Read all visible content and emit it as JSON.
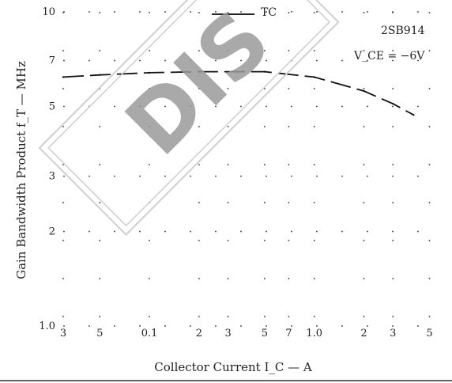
{
  "chart_data": {
    "type": "line",
    "xlabel": "Collector Current I_C — A",
    "ylabel": "Gain Bandwidth Product f_T — MHz",
    "x_scale": "log",
    "y_scale": "log",
    "xlim": [
      0.03,
      6
    ],
    "ylim": [
      1,
      10
    ],
    "x_ticks": [
      {
        "value": 0.03,
        "label": "3"
      },
      {
        "value": 0.05,
        "label": "5"
      },
      {
        "value": 0.1,
        "label": "0.1"
      },
      {
        "value": 0.2,
        "label": "2"
      },
      {
        "value": 0.3,
        "label": "3"
      },
      {
        "value": 0.5,
        "label": "5"
      },
      {
        "value": 0.7,
        "label": "7"
      },
      {
        "value": 1.0,
        "label": "1.0"
      },
      {
        "value": 2.0,
        "label": "2"
      },
      {
        "value": 3.0,
        "label": "3"
      },
      {
        "value": 5.0,
        "label": "5"
      }
    ],
    "y_ticks": [
      {
        "value": 1,
        "label": "1.0"
      },
      {
        "value": 2,
        "label": "2"
      },
      {
        "value": 3,
        "label": "3"
      },
      {
        "value": 5,
        "label": "5"
      },
      {
        "value": 7,
        "label": "7"
      },
      {
        "value": 10,
        "label": "10"
      }
    ],
    "annotations": {
      "device": "2SB914",
      "condition": "V_CE = −6V",
      "top_note": "TC"
    },
    "series": [
      {
        "x": [
          0.03,
          0.05,
          0.1,
          0.2,
          0.5,
          1.0,
          2.0,
          3.0,
          4.0
        ],
        "y": [
          6.2,
          6.3,
          6.4,
          6.45,
          6.45,
          6.2,
          5.6,
          5.1,
          4.7
        ]
      }
    ],
    "grid": "dotted",
    "watermark": "DIS"
  }
}
